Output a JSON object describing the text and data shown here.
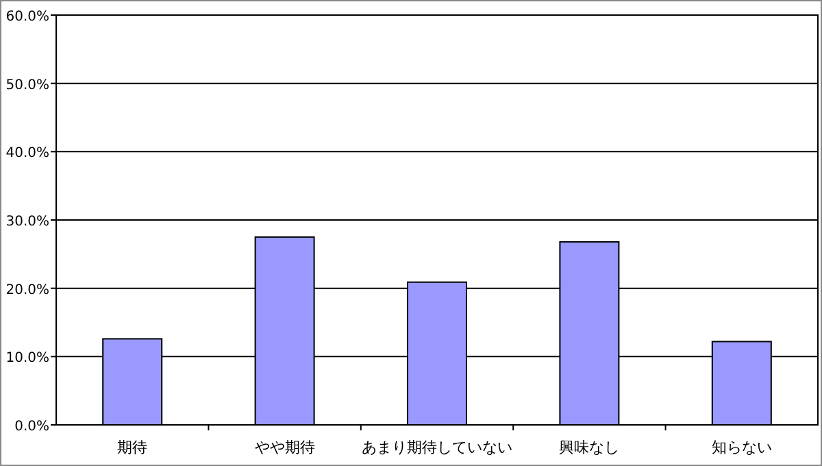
{
  "chart_data": {
    "type": "bar",
    "categories": [
      "期待",
      "やや期待",
      "あまり期待していない",
      "興味なし",
      "知らない"
    ],
    "values": [
      12.6,
      27.5,
      20.9,
      26.8,
      12.2
    ],
    "color": "#9999ff",
    "ylim": [
      0,
      60
    ],
    "yticks": [
      {
        "value": 0,
        "label": "0.0%"
      },
      {
        "value": 10,
        "label": "10.0%"
      },
      {
        "value": 20,
        "label": "20.0%"
      },
      {
        "value": 30,
        "label": "30.0%"
      },
      {
        "value": 40,
        "label": "40.0%"
      },
      {
        "value": 50,
        "label": "50.0%"
      },
      {
        "value": 60,
        "label": "60.0%"
      }
    ],
    "grid": "y"
  }
}
